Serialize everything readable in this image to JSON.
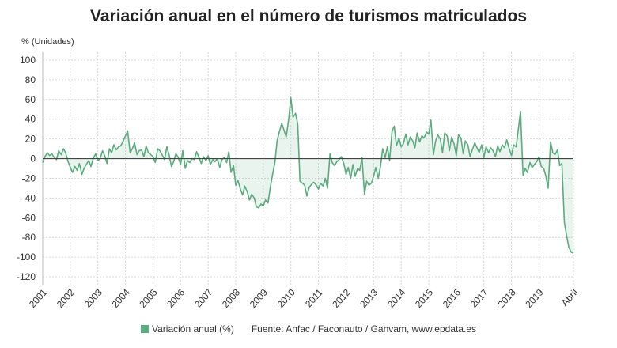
{
  "chart_data": {
    "type": "line",
    "title": "Variación anual en el número de turismos matriculados",
    "ylabel": "% (Unidades)",
    "ylim": [
      -128,
      108
    ],
    "yticks": [
      100,
      80,
      60,
      40,
      20,
      0,
      -20,
      -40,
      -60,
      -80,
      -100,
      -120
    ],
    "xrange": [
      2001.0,
      2020.25
    ],
    "xticks": [
      {
        "x": 2001,
        "label": "2001"
      },
      {
        "x": 2002,
        "label": "2002"
      },
      {
        "x": 2003,
        "label": "2003"
      },
      {
        "x": 2004,
        "label": "2004"
      },
      {
        "x": 2005,
        "label": "2005"
      },
      {
        "x": 2006,
        "label": "2006"
      },
      {
        "x": 2007,
        "label": "2007"
      },
      {
        "x": 2008,
        "label": "2008"
      },
      {
        "x": 2009,
        "label": "2009"
      },
      {
        "x": 2010,
        "label": "2010"
      },
      {
        "x": 2011,
        "label": "2011"
      },
      {
        "x": 2012,
        "label": "2012"
      },
      {
        "x": 2013,
        "label": "2013"
      },
      {
        "x": 2014,
        "label": "2014"
      },
      {
        "x": 2015,
        "label": "2015"
      },
      {
        "x": 2016,
        "label": "2016"
      },
      {
        "x": 2017,
        "label": "2017"
      },
      {
        "x": 2018,
        "label": "2018"
      },
      {
        "x": 2019,
        "label": "2019"
      },
      {
        "x": 2020.25,
        "label": "Abril"
      }
    ],
    "grid": true,
    "legend": "bottom",
    "series": [
      {
        "name": "Variación anual (%)",
        "color": "#5aab7d",
        "x": [
          2001.0,
          2001.08,
          2001.17,
          2001.25,
          2001.33,
          2001.42,
          2001.5,
          2001.58,
          2001.67,
          2001.75,
          2001.83,
          2001.92,
          2002.0,
          2002.08,
          2002.17,
          2002.25,
          2002.33,
          2002.42,
          2002.5,
          2002.58,
          2002.67,
          2002.75,
          2002.83,
          2002.92,
          2003.0,
          2003.08,
          2003.17,
          2003.25,
          2003.33,
          2003.42,
          2003.5,
          2003.58,
          2003.67,
          2003.75,
          2003.83,
          2003.92,
          2004.0,
          2004.08,
          2004.17,
          2004.25,
          2004.33,
          2004.42,
          2004.5,
          2004.58,
          2004.67,
          2004.75,
          2004.83,
          2004.92,
          2005.0,
          2005.08,
          2005.17,
          2005.25,
          2005.33,
          2005.42,
          2005.5,
          2005.58,
          2005.67,
          2005.75,
          2005.83,
          2005.92,
          2006.0,
          2006.08,
          2006.17,
          2006.25,
          2006.33,
          2006.42,
          2006.5,
          2006.58,
          2006.67,
          2006.75,
          2006.83,
          2006.92,
          2007.0,
          2007.08,
          2007.17,
          2007.25,
          2007.33,
          2007.42,
          2007.5,
          2007.58,
          2007.67,
          2007.75,
          2007.83,
          2007.92,
          2008.0,
          2008.08,
          2008.17,
          2008.25,
          2008.33,
          2008.42,
          2008.5,
          2008.58,
          2008.67,
          2008.75,
          2008.83,
          2008.92,
          2009.0,
          2009.08,
          2009.17,
          2009.25,
          2009.33,
          2009.42,
          2009.5,
          2009.58,
          2009.67,
          2009.75,
          2009.83,
          2009.92,
          2010.0,
          2010.08,
          2010.17,
          2010.25,
          2010.33,
          2010.42,
          2010.5,
          2010.58,
          2010.67,
          2010.75,
          2010.83,
          2010.92,
          2011.0,
          2011.08,
          2011.17,
          2011.25,
          2011.33,
          2011.42,
          2011.5,
          2011.58,
          2011.67,
          2011.75,
          2011.83,
          2011.92,
          2012.0,
          2012.08,
          2012.17,
          2012.25,
          2012.33,
          2012.42,
          2012.5,
          2012.58,
          2012.67,
          2012.75,
          2012.83,
          2012.92,
          2013.0,
          2013.08,
          2013.17,
          2013.25,
          2013.33,
          2013.42,
          2013.5,
          2013.58,
          2013.67,
          2013.75,
          2013.83,
          2013.92,
          2014.0,
          2014.08,
          2014.17,
          2014.25,
          2014.33,
          2014.42,
          2014.5,
          2014.58,
          2014.67,
          2014.75,
          2014.83,
          2014.92,
          2015.0,
          2015.08,
          2015.17,
          2015.25,
          2015.33,
          2015.42,
          2015.5,
          2015.58,
          2015.67,
          2015.75,
          2015.83,
          2015.92,
          2016.0,
          2016.08,
          2016.17,
          2016.25,
          2016.33,
          2016.42,
          2016.5,
          2016.58,
          2016.67,
          2016.75,
          2016.83,
          2016.92,
          2017.0,
          2017.08,
          2017.17,
          2017.25,
          2017.33,
          2017.42,
          2017.5,
          2017.58,
          2017.67,
          2017.75,
          2017.83,
          2017.92,
          2018.0,
          2018.08,
          2018.17,
          2018.25,
          2018.33,
          2018.42,
          2018.5,
          2018.58,
          2018.67,
          2018.75,
          2018.83,
          2018.92,
          2019.0,
          2019.08,
          2019.17,
          2019.25,
          2019.33,
          2019.42,
          2019.5,
          2019.58,
          2019.67,
          2019.75,
          2019.83,
          2019.92,
          2020.0,
          2020.08,
          2020.17,
          2020.25
        ],
        "values": [
          -4,
          2,
          6,
          3,
          5,
          1,
          -1,
          8,
          4,
          10,
          6,
          -3,
          -9,
          -14,
          -8,
          -12,
          -5,
          -16,
          -10,
          -6,
          -2,
          -8,
          0,
          5,
          -2,
          0,
          8,
          3,
          -5,
          10,
          6,
          14,
          9,
          12,
          13,
          18,
          23,
          28,
          6,
          10,
          16,
          4,
          8,
          9,
          2,
          13,
          6,
          4,
          2,
          -4,
          10,
          8,
          4,
          -1,
          12,
          4,
          -8,
          -3,
          5,
          1,
          -6,
          8,
          -10,
          -2,
          -4,
          0,
          -1,
          7,
          1,
          -5,
          2,
          -2,
          3,
          -6,
          -1,
          -3,
          0,
          -9,
          -1,
          1,
          -4,
          7,
          -14,
          -7,
          -27,
          -22,
          -31,
          -37,
          -28,
          -34,
          -42,
          -36,
          -40,
          -49,
          -50,
          -46,
          -48,
          -42,
          -45,
          -30,
          -17,
          -4,
          18,
          27,
          36,
          29,
          22,
          40,
          62,
          42,
          46,
          35,
          -23,
          -25,
          -27,
          -38,
          -29,
          -26,
          -24,
          -27,
          -31,
          -25,
          -28,
          -20,
          -30,
          5,
          -4,
          -7,
          -3,
          -1,
          2,
          -5,
          -16,
          -9,
          -20,
          -6,
          -18,
          -10,
          -12,
          1,
          -36,
          -23,
          -27,
          -25,
          -18,
          -9,
          -20,
          -8,
          10,
          1,
          12,
          -2,
          28,
          33,
          13,
          21,
          12,
          15,
          25,
          14,
          22,
          18,
          11,
          26,
          17,
          23,
          21,
          27,
          25,
          39,
          4,
          18,
          24,
          20,
          6,
          26,
          23,
          8,
          22,
          15,
          3,
          24,
          21,
          5,
          18,
          14,
          2,
          9,
          16,
          11,
          6,
          14,
          1,
          12,
          6,
          11,
          8,
          2,
          13,
          7,
          14,
          11,
          19,
          10,
          3,
          14,
          12,
          30,
          48,
          -17,
          -10,
          -14,
          -4,
          -9,
          -6,
          -3,
          2,
          -8,
          -10,
          -18,
          -30,
          17,
          6,
          4,
          9,
          -7,
          -5,
          -65,
          -78,
          -90,
          -95,
          -96
        ]
      }
    ],
    "footer_source": "Fuente: Anfac / Faconauto / Ganvam, www.epdata.es"
  }
}
